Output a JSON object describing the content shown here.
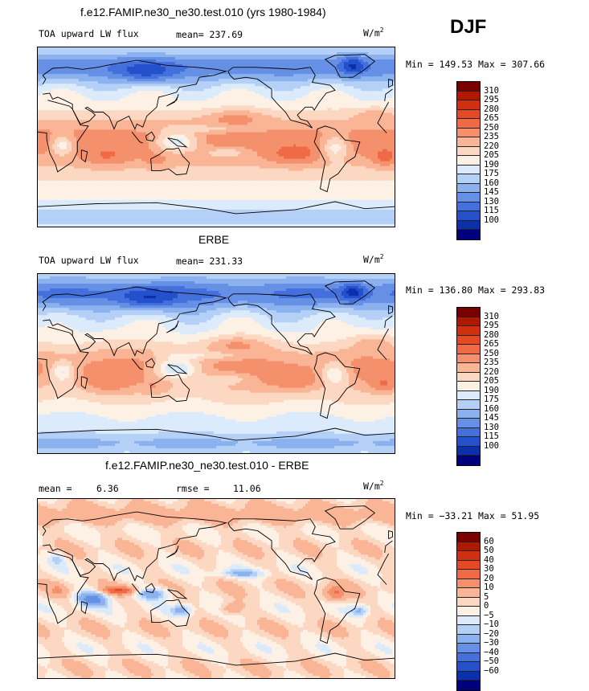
{
  "season": "DJF",
  "unit_w": "W/m",
  "unit_sup": "2",
  "panels": [
    {
      "title": "f.e12.FAMIP.ne30_ne30.test.010 (yrs 1980-1984)",
      "left_label": "TOA upward LW flux",
      "stat_label": "mean= 237.69",
      "minmax": "Min = 149.53 Max = 307.66",
      "field_type": "absolute",
      "colorbar": {
        "labels": [
          "310",
          "295",
          "280",
          "265",
          "250",
          "235",
          "220",
          "205",
          "190",
          "175",
          "160",
          "145",
          "130",
          "115",
          "100"
        ],
        "colors": [
          "#7a0000",
          "#b11800",
          "#d03010",
          "#e54a25",
          "#ef6a45",
          "#f5906d",
          "#f9b595",
          "#fcd8c2",
          "#fdf1e6",
          "#dcebfb",
          "#b4d0f6",
          "#8bb2ef",
          "#6690e6",
          "#4470dd",
          "#2450cc",
          "#0c2fab",
          "#00007f"
        ]
      }
    },
    {
      "title": "ERBE",
      "left_label": "TOA upward LW flux",
      "stat_label": "mean= 231.33",
      "minmax": "Min = 136.80 Max = 293.83",
      "field_type": "absolute",
      "colorbar": {
        "labels": [
          "310",
          "295",
          "280",
          "265",
          "250",
          "235",
          "220",
          "205",
          "190",
          "175",
          "160",
          "145",
          "130",
          "115",
          "100"
        ],
        "colors": [
          "#7a0000",
          "#b11800",
          "#d03010",
          "#e54a25",
          "#ef6a45",
          "#f5906d",
          "#f9b595",
          "#fcd8c2",
          "#fdf1e6",
          "#dcebfb",
          "#b4d0f6",
          "#8bb2ef",
          "#6690e6",
          "#4470dd",
          "#2450cc",
          "#0c2fab",
          "#00007f"
        ]
      }
    },
    {
      "title": "f.e12.FAMIP.ne30_ne30.test.010 - ERBE",
      "mean_label": "mean =",
      "mean_value": "6.36",
      "rmse_label": "rmse =",
      "rmse_value": "11.06",
      "minmax": "Min = −33.21 Max =  51.95",
      "field_type": "difference",
      "colorbar": {
        "labels": [
          "60",
          "50",
          "40",
          "30",
          "20",
          "10",
          "5",
          "0",
          "−5",
          "−10",
          "−20",
          "−30",
          "−40",
          "−50",
          "−60"
        ],
        "colors": [
          "#7a0000",
          "#b11800",
          "#d03010",
          "#e54a25",
          "#ef6a45",
          "#f5906d",
          "#f9b595",
          "#fcd8c2",
          "#fdf1e6",
          "#dcebfb",
          "#b4d0f6",
          "#8bb2ef",
          "#6690e6",
          "#4470dd",
          "#2450cc",
          "#0c2fab",
          "#00007f"
        ]
      }
    }
  ]
}
